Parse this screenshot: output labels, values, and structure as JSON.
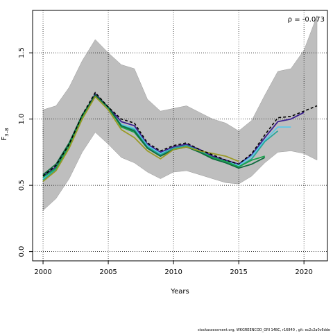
{
  "chart_data": {
    "type": "line",
    "title": "",
    "xlabel": "Years",
    "ylabel": "F3–8",
    "xlim": [
      1999.2,
      2021.8
    ],
    "ylim": [
      -0.07,
      1.82
    ],
    "xticks": [
      2000,
      2005,
      2010,
      2015,
      2020
    ],
    "yticks": [
      0.0,
      0.5,
      1.0,
      1.5
    ],
    "ytick_labels": [
      "0.0",
      "0.5",
      "1.0",
      "1.5"
    ],
    "grid": "dotted",
    "annotation": "ρ = -0.073",
    "band": {
      "x": [
        2000,
        2001,
        2002,
        2003,
        2004,
        2005,
        2006,
        2007,
        2008,
        2009,
        2010,
        2011,
        2012,
        2013,
        2014,
        2015,
        2016,
        2017,
        2018,
        2019,
        2020,
        2021
      ],
      "upper": [
        1.07,
        1.1,
        1.24,
        1.44,
        1.6,
        1.5,
        1.41,
        1.38,
        1.15,
        1.06,
        1.08,
        1.1,
        1.05,
        1.0,
        0.97,
        0.91,
        0.99,
        1.18,
        1.36,
        1.38,
        1.52,
        1.78
      ],
      "lower": [
        0.31,
        0.4,
        0.55,
        0.75,
        0.9,
        0.81,
        0.71,
        0.67,
        0.6,
        0.55,
        0.6,
        0.61,
        0.58,
        0.55,
        0.52,
        0.51,
        0.57,
        0.67,
        0.75,
        0.76,
        0.74,
        0.69
      ],
      "color": "#bebebe"
    },
    "series": [
      {
        "color": "#000000",
        "dash": "dashed",
        "x": [
          2000,
          2001,
          2002,
          2003,
          2004,
          2005,
          2006,
          2007,
          2008,
          2009,
          2010,
          2011,
          2012,
          2013,
          2014,
          2015,
          2016,
          2017,
          2018,
          2019,
          2020,
          2021
        ],
        "values": [
          0.57,
          0.65,
          0.81,
          1.03,
          1.2,
          1.09,
          1.0,
          0.97,
          0.82,
          0.76,
          0.8,
          0.82,
          0.77,
          0.73,
          0.69,
          0.66,
          0.74,
          0.88,
          1.01,
          1.02,
          1.06,
          1.1
        ]
      },
      {
        "color": "#3b1f8f",
        "x": [
          2000,
          2001,
          2002,
          2003,
          2004,
          2005,
          2006,
          2007,
          2008,
          2009,
          2010,
          2011,
          2012,
          2013,
          2014,
          2015,
          2016,
          2017,
          2018,
          2019,
          2020
        ],
        "values": [
          0.57,
          0.64,
          0.81,
          1.02,
          1.19,
          1.09,
          0.98,
          0.95,
          0.81,
          0.75,
          0.79,
          0.81,
          0.77,
          0.72,
          0.69,
          0.66,
          0.73,
          0.86,
          0.98,
          1.0,
          1.05
        ]
      },
      {
        "color": "#5bc8e8",
        "x": [
          2000,
          2001,
          2002,
          2003,
          2004,
          2005,
          2006,
          2007,
          2008,
          2009,
          2010,
          2011,
          2012,
          2013,
          2014,
          2015,
          2016,
          2017,
          2018,
          2019
        ],
        "values": [
          0.55,
          0.63,
          0.8,
          1.01,
          1.18,
          1.08,
          0.96,
          0.93,
          0.8,
          0.74,
          0.78,
          0.8,
          0.76,
          0.71,
          0.68,
          0.65,
          0.72,
          0.84,
          0.94,
          0.94
        ]
      },
      {
        "color": "#27a69a",
        "x": [
          2000,
          2001,
          2002,
          2003,
          2004,
          2005,
          2006,
          2007,
          2008,
          2009,
          2010,
          2011,
          2012,
          2013,
          2014,
          2015,
          2016,
          2017,
          2018
        ],
        "values": [
          0.54,
          0.62,
          0.8,
          1.01,
          1.17,
          1.08,
          0.95,
          0.92,
          0.79,
          0.73,
          0.78,
          0.8,
          0.76,
          0.71,
          0.68,
          0.64,
          0.7,
          0.83,
          0.91
        ]
      },
      {
        "color": "#17a34a",
        "x": [
          2000,
          2001,
          2002,
          2003,
          2004,
          2005,
          2006,
          2007,
          2008,
          2009,
          2010,
          2011,
          2012,
          2013,
          2014,
          2015,
          2016,
          2017
        ],
        "values": [
          0.56,
          0.63,
          0.8,
          1.02,
          1.18,
          1.09,
          0.94,
          0.9,
          0.78,
          0.72,
          0.77,
          0.79,
          0.75,
          0.71,
          0.68,
          0.64,
          0.69,
          0.72
        ]
      },
      {
        "color": "#0e6b3e",
        "x": [
          2000,
          2001,
          2002,
          2003,
          2004,
          2005,
          2006,
          2007,
          2008,
          2009,
          2010,
          2011,
          2012,
          2013,
          2014,
          2015,
          2016,
          2017
        ],
        "values": [
          0.58,
          0.66,
          0.82,
          1.03,
          1.18,
          1.09,
          0.95,
          0.91,
          0.78,
          0.72,
          0.77,
          0.79,
          0.75,
          0.7,
          0.67,
          0.63,
          0.66,
          0.71
        ]
      },
      {
        "color": "#9a9a24",
        "x": [
          2000,
          2001,
          2002,
          2003,
          2004,
          2005,
          2006,
          2007,
          2008,
          2009,
          2010,
          2011,
          2012,
          2013,
          2014,
          2015
        ],
        "values": [
          0.53,
          0.61,
          0.78,
          1.0,
          1.17,
          1.07,
          0.92,
          0.86,
          0.76,
          0.7,
          0.77,
          0.79,
          0.76,
          0.74,
          0.72,
          0.68
        ]
      }
    ]
  },
  "footer": "stockassessment.org, WKGREENCOD_GRI 14BC, r16840 , git: ec2c2a0c6dde"
}
